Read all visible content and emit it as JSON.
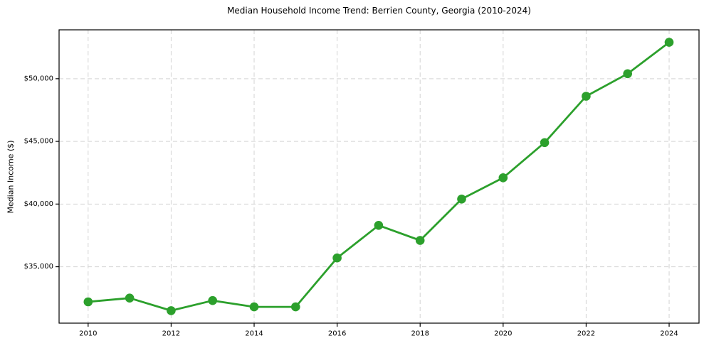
{
  "chart_data": {
    "type": "line",
    "title": "Median Household Income Trend: Berrien County, Georgia (2010-2024)",
    "xlabel": "",
    "ylabel": "Median Income ($)",
    "x": [
      2010,
      2011,
      2012,
      2013,
      2014,
      2015,
      2016,
      2017,
      2018,
      2019,
      2020,
      2021,
      2022,
      2023,
      2024
    ],
    "values": [
      32200,
      32500,
      31500,
      32300,
      31800,
      31800,
      35700,
      38300,
      37100,
      40400,
      42100,
      44900,
      48600,
      50400,
      52900
    ],
    "xticks": [
      2010,
      2012,
      2014,
      2016,
      2018,
      2020,
      2022,
      2024
    ],
    "yticks": [
      35000,
      40000,
      45000,
      50000
    ],
    "ytick_labels": [
      "$35,000",
      "$40,000",
      "$45,000",
      "$50,000"
    ],
    "xlim": [
      2009.3,
      2024.72
    ],
    "ylim": [
      30500,
      53900
    ],
    "grid": true,
    "grid_style": "dashed",
    "legend": "none",
    "marker": "circle",
    "colors": {
      "line": "#2ca02c",
      "grid": "#d4d4d4",
      "spine": "#000000",
      "text": "#000000",
      "background": "#ffffff"
    }
  }
}
